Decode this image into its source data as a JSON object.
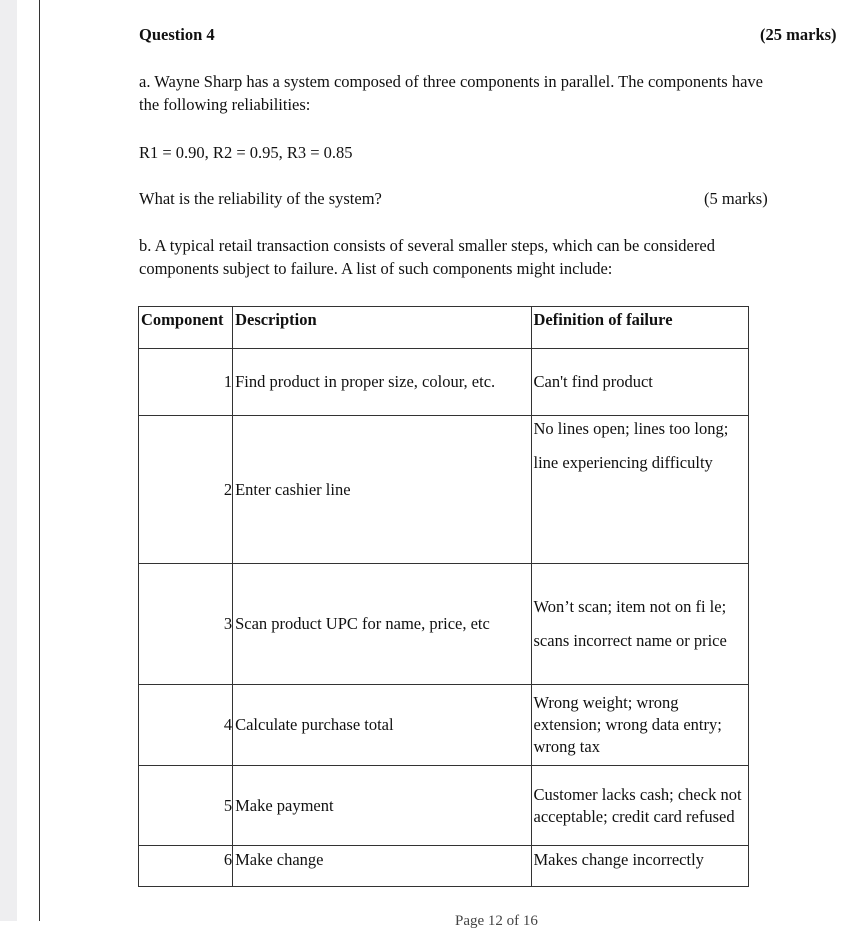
{
  "question": {
    "title": "Question 4",
    "marks": "(25 marks)"
  },
  "part_a": {
    "text_line1": "a. Wayne Sharp has a system composed of three components in parallel. The components have",
    "text_line2": "the following reliabilities:",
    "reliabilities": "R1 = 0.90, R2 = 0.95, R3 = 0.85",
    "question": "What is the reliability of the system?",
    "marks": "(5 marks)"
  },
  "part_b": {
    "text_line1": "b. A typical retail transaction consists of several smaller steps, which can be considered",
    "text_line2": "components subject to failure. A list of such components might include:"
  },
  "table": {
    "headers": [
      "Component",
      "Description",
      "Definition of failure"
    ],
    "rows": [
      {
        "num": "1",
        "desc": "Find product in proper size, colour, etc.",
        "def": [
          "Can't find product"
        ]
      },
      {
        "num": "2",
        "desc": "Enter cashier line",
        "def": [
          "No lines open; lines too long;",
          "line experiencing difficulty"
        ]
      },
      {
        "num": "3",
        "desc": "Scan product UPC for name, price, etc",
        "def": [
          "Won’t scan; item not on fi le;",
          "scans incorrect name or price"
        ]
      },
      {
        "num": "4",
        "desc": "Calculate purchase total",
        "def": [
          "Wrong weight; wrong extension; wrong data entry; wrong tax"
        ]
      },
      {
        "num": "5",
        "desc": "Make payment",
        "def": [
          "Customer lacks cash; check not acceptable; credit card refused"
        ]
      },
      {
        "num": "6",
        "desc": "Make change",
        "def": [
          "Makes change incorrectly"
        ]
      }
    ]
  },
  "footer": "Page 12 of 16"
}
